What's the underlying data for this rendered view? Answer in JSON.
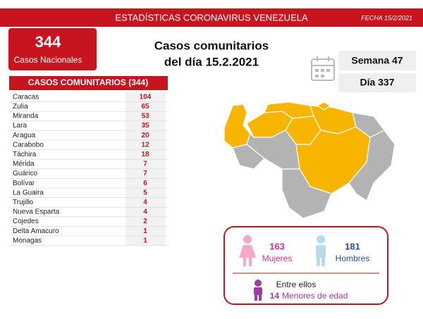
{
  "header": {
    "title": "ESTADÍSTICAS CORONAVIRUS VENEZUELA",
    "date": "FECHA 15/2/2021"
  },
  "national": {
    "value": 344,
    "label": "Casos Nacionales"
  },
  "headline": {
    "line1": "Casos comunitarios",
    "line2": "del día 15.2.2021"
  },
  "week": "Semana 47",
  "day": "Día 337",
  "table": {
    "title": "CASOS COMUNITARIOS (344)",
    "rows": [
      [
        "Caracas",
        104
      ],
      [
        "Zulia",
        65
      ],
      [
        "Miranda",
        53
      ],
      [
        "Lara",
        35
      ],
      [
        "Aragua",
        20
      ],
      [
        "Carabobo",
        12
      ],
      [
        "Táchira",
        18
      ],
      [
        "Mérida",
        7
      ],
      [
        "Guárico",
        7
      ],
      [
        "Bolívar",
        6
      ],
      [
        "La Guaira",
        5
      ],
      [
        "Trujillo",
        4
      ],
      [
        "Nueva Esparta",
        4
      ],
      [
        "Cojedes",
        2
      ],
      [
        "Delta Amacuro",
        1
      ],
      [
        "Monagas",
        1
      ]
    ]
  },
  "gender": {
    "women": {
      "value": 163,
      "label": "Mujeres"
    },
    "men": {
      "value": 181,
      "label": "Hombres"
    }
  },
  "minors": {
    "intro": "Entre ellos",
    "value": 14,
    "label": "Menores de edad"
  }
}
